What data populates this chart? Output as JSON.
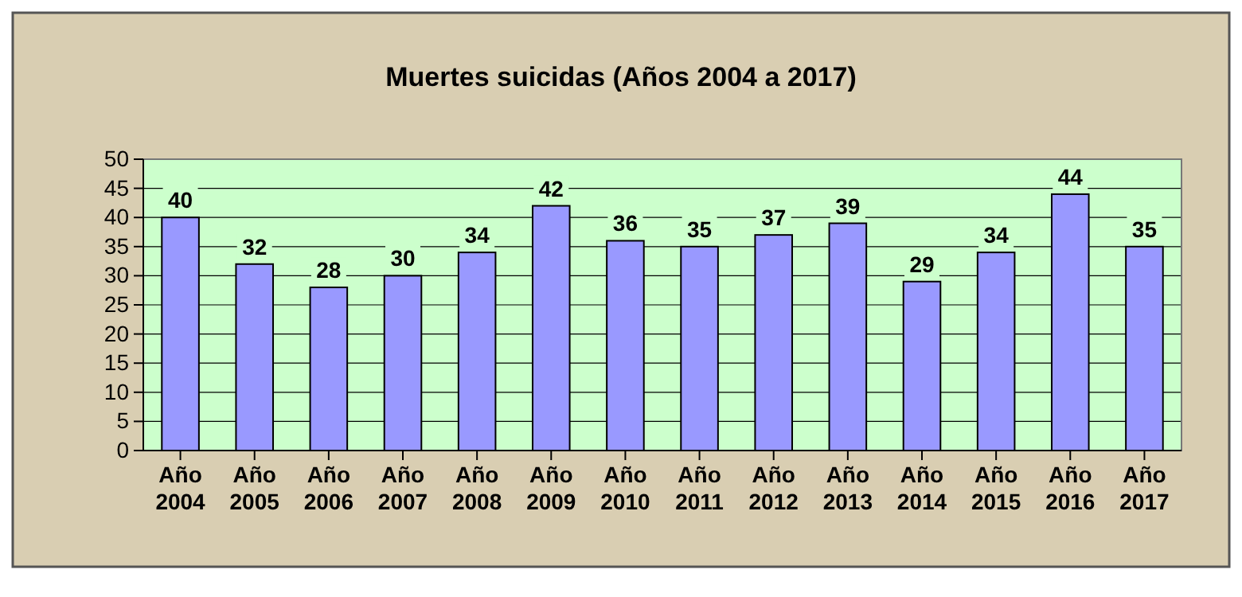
{
  "chart_data": {
    "type": "bar",
    "title": "Muertes suicidas (Años 2004 a 2017)",
    "categories": [
      "Año 2004",
      "Año 2005",
      "Año 2006",
      "Año 2007",
      "Año 2008",
      "Año 2009",
      "Año 2010",
      "Año 2011",
      "Año 2012",
      "Año 2013",
      "Año 2014",
      "Año 2015",
      "Año 2016",
      "Año 2017"
    ],
    "values": [
      40,
      32,
      28,
      30,
      34,
      42,
      36,
      35,
      37,
      39,
      29,
      34,
      44,
      35
    ],
    "color": "#9999ff",
    "ylim": [
      0,
      50
    ],
    "yticks": [
      0,
      5,
      10,
      15,
      20,
      25,
      30,
      35,
      40,
      45,
      50
    ],
    "grid": "y",
    "data_labels": true
  }
}
